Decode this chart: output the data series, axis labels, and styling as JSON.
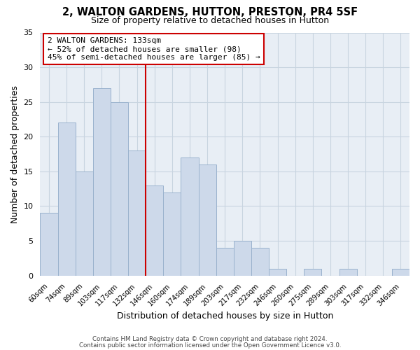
{
  "title": "2, WALTON GARDENS, HUTTON, PRESTON, PR4 5SF",
  "subtitle": "Size of property relative to detached houses in Hutton",
  "xlabel": "Distribution of detached houses by size in Hutton",
  "ylabel": "Number of detached properties",
  "bar_color": "#cdd9ea",
  "bar_edge_color": "#9ab2cd",
  "categories": [
    "60sqm",
    "74sqm",
    "89sqm",
    "103sqm",
    "117sqm",
    "132sqm",
    "146sqm",
    "160sqm",
    "174sqm",
    "189sqm",
    "203sqm",
    "217sqm",
    "232sqm",
    "246sqm",
    "260sqm",
    "275sqm",
    "289sqm",
    "303sqm",
    "317sqm",
    "332sqm",
    "346sqm"
  ],
  "values": [
    9,
    22,
    15,
    27,
    25,
    18,
    13,
    12,
    17,
    16,
    4,
    5,
    4,
    1,
    0,
    1,
    0,
    1,
    0,
    0,
    1
  ],
  "ylim": [
    0,
    35
  ],
  "yticks": [
    0,
    5,
    10,
    15,
    20,
    25,
    30,
    35
  ],
  "property_line_index": 5.5,
  "property_line_color": "#cc0000",
  "annotation_line1": "2 WALTON GARDENS: 133sqm",
  "annotation_line2": "← 52% of detached houses are smaller (98)",
  "annotation_line3": "45% of semi-detached houses are larger (85) →",
  "annotation_box_color": "#ffffff",
  "annotation_box_edge": "#cc0000",
  "footer_line1": "Contains HM Land Registry data © Crown copyright and database right 2024.",
  "footer_line2": "Contains public sector information licensed under the Open Government Licence v3.0.",
  "background_color": "#ffffff",
  "plot_bg_color": "#e8eef5",
  "grid_color": "#c8d4e0"
}
